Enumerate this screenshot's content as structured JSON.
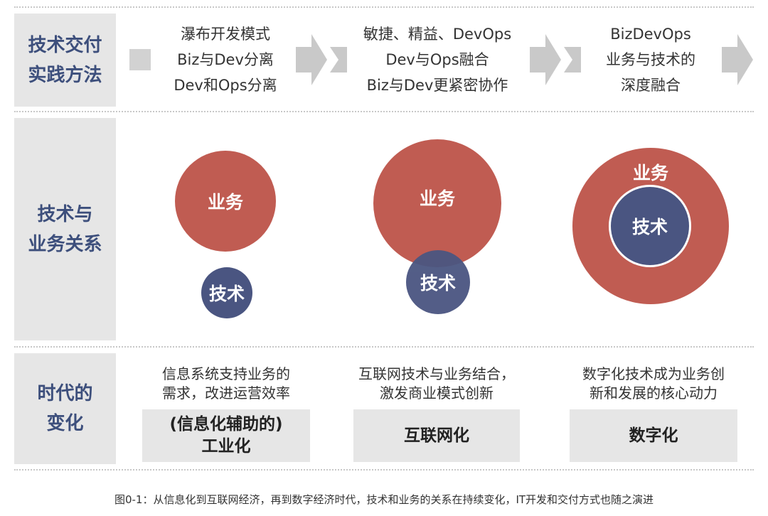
{
  "rows": {
    "method_label": "技术交付\n实践方法",
    "relation_label": "技术与\n业务关系",
    "era_label": "时代的\n变化"
  },
  "methods": [
    {
      "lines": [
        "瀑布开发模式",
        "Biz与Dev分离",
        "Dev和Ops分离"
      ]
    },
    {
      "lines": [
        "敏捷、精益、DevOps",
        "Dev与Ops融合",
        "Biz与Dev更紧密协作"
      ]
    },
    {
      "lines": [
        "BizDevOps",
        "业务与技术的",
        "深度融合"
      ]
    }
  ],
  "relations": {
    "business": "业务",
    "technology": "技术"
  },
  "eras": [
    {
      "desc": [
        "信息系统支持业务的",
        "需求，改进运营效率"
      ],
      "name": [
        "(信息化辅助的)",
        "工业化"
      ]
    },
    {
      "desc": [
        "互联网技术与业务结合，",
        "激发商业模式创新"
      ],
      "name": [
        "互联网化"
      ]
    },
    {
      "desc": [
        "数字化技术成为业务创",
        "新和发展的核心动力"
      ],
      "name": [
        "数字化"
      ]
    }
  ],
  "caption": "图0-1：从信息化到互联网经济，再到数字经济时代，技术和业务的关系在持续变化，IT开发和交付方式也随之演进",
  "colors": {
    "business": "#c05c52",
    "technology": "#4a5581",
    "label_text": "#3d4f7c",
    "panel": "#e6e6e6"
  }
}
